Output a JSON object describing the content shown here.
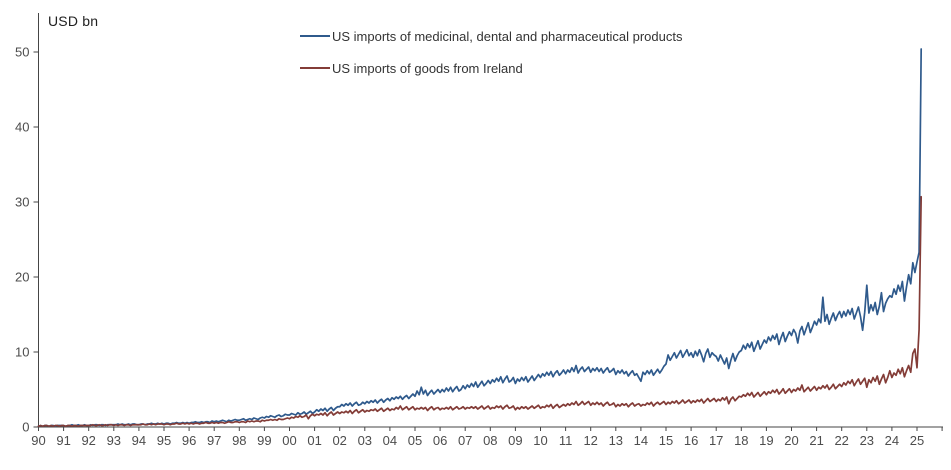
{
  "chart": {
    "axis_color": "#454545",
    "tick_text_color": "#4d4d4d",
    "background": "#ffffff"
  },
  "chart_data": {
    "type": "line",
    "title": "",
    "unit_label": "USD bn",
    "grid": false,
    "legend_position": "top-center",
    "x_axis": {
      "start": "1990-01",
      "frequency": "monthly",
      "tick_labels": [
        "90",
        "91",
        "92",
        "93",
        "94",
        "95",
        "96",
        "97",
        "98",
        "99",
        "00",
        "01",
        "02",
        "03",
        "04",
        "05",
        "06",
        "07",
        "08",
        "09",
        "10",
        "11",
        "12",
        "13",
        "14",
        "15",
        "16",
        "17",
        "18",
        "19",
        "20",
        "21",
        "22",
        "23",
        "24",
        "25"
      ]
    },
    "y_axis": {
      "ticks": [
        0,
        10,
        20,
        30,
        40,
        50
      ],
      "range": [
        0,
        52
      ]
    },
    "series": [
      {
        "name": "US imports of medicinal, dental and pharmaceutical products",
        "color": "#2F5A8C",
        "values": [
          0.1,
          0.2,
          0.1,
          0.2,
          0.2,
          0.1,
          0.2,
          0.2,
          0.1,
          0.2,
          0.2,
          0.2,
          0.2,
          0.1,
          0.2,
          0.2,
          0.3,
          0.2,
          0.2,
          0.3,
          0.2,
          0.2,
          0.3,
          0.2,
          0.2,
          0.3,
          0.2,
          0.3,
          0.3,
          0.2,
          0.3,
          0.3,
          0.2,
          0.3,
          0.3,
          0.3,
          0.3,
          0.3,
          0.4,
          0.3,
          0.4,
          0.3,
          0.3,
          0.4,
          0.3,
          0.4,
          0.4,
          0.3,
          0.3,
          0.4,
          0.4,
          0.3,
          0.4,
          0.4,
          0.5,
          0.4,
          0.4,
          0.5,
          0.4,
          0.5,
          0.4,
          0.5,
          0.5,
          0.4,
          0.5,
          0.5,
          0.6,
          0.5,
          0.5,
          0.6,
          0.5,
          0.6,
          0.5,
          0.6,
          0.6,
          0.7,
          0.6,
          0.6,
          0.7,
          0.6,
          0.7,
          0.7,
          0.6,
          0.8,
          0.7,
          0.8,
          0.7,
          0.8,
          0.9,
          0.8,
          0.7,
          0.9,
          0.8,
          0.9,
          1.0,
          0.9,
          0.9,
          1.0,
          1.1,
          0.9,
          1.0,
          1.1,
          1.0,
          1.2,
          1.1,
          1.0,
          1.2,
          1.3,
          1.2,
          1.4,
          1.3,
          1.5,
          1.4,
          1.3,
          1.5,
          1.6,
          1.4,
          1.5,
          1.7,
          1.6,
          1.6,
          1.8,
          1.7,
          1.6,
          1.9,
          1.7,
          1.8,
          2.0,
          1.7,
          1.9,
          2.1,
          1.8,
          2.0,
          2.3,
          2.1,
          2.4,
          2.2,
          2.5,
          2.1,
          2.4,
          2.6,
          2.2,
          2.5,
          2.7,
          2.7,
          3.0,
          2.8,
          3.1,
          2.9,
          3.2,
          2.8,
          3.1,
          3.3,
          2.9,
          3.0,
          3.3,
          3.1,
          3.4,
          3.2,
          3.5,
          3.3,
          3.6,
          3.2,
          3.5,
          3.7,
          3.3,
          3.6,
          3.8,
          3.5,
          3.9,
          3.7,
          4.0,
          3.8,
          4.1,
          3.7,
          4.0,
          4.2,
          3.8,
          4.1,
          4.4,
          4.1,
          4.8,
          4.3,
          5.3,
          4.4,
          4.9,
          4.2,
          4.6,
          4.9,
          4.4,
          4.7,
          5.0,
          4.6,
          5.0,
          4.7,
          5.2,
          4.8,
          5.3,
          4.7,
          5.1,
          5.4,
          4.8,
          5.0,
          5.5,
          5.1,
          5.6,
          5.3,
          5.8,
          5.4,
          6.0,
          5.3,
          5.7,
          6.1,
          5.5,
          5.8,
          6.2,
          5.8,
          6.3,
          6.0,
          6.5,
          6.1,
          6.7,
          5.9,
          6.4,
          6.8,
          6.0,
          6.2,
          6.6,
          5.8,
          6.4,
          6.1,
          6.6,
          6.2,
          6.7,
          6.0,
          6.4,
          6.8,
          6.2,
          6.6,
          7.0,
          6.6,
          7.1,
          6.8,
          7.3,
          6.9,
          7.4,
          6.7,
          7.2,
          7.5,
          6.9,
          7.2,
          7.6,
          7.1,
          7.6,
          7.3,
          7.9,
          7.4,
          8.2,
          7.2,
          7.7,
          8.0,
          7.4,
          7.7,
          8.0,
          7.3,
          7.8,
          7.5,
          7.9,
          7.4,
          7.8,
          7.2,
          7.6,
          7.9,
          7.3,
          7.5,
          7.8,
          7.0,
          7.5,
          7.2,
          7.6,
          7.1,
          7.4,
          6.8,
          7.2,
          7.5,
          6.9,
          7.1,
          6.6,
          6.1,
          7.3,
          7.0,
          7.5,
          7.1,
          7.6,
          6.9,
          7.3,
          7.7,
          7.2,
          7.6,
          8.1,
          8.4,
          9.6,
          8.9,
          9.4,
          9.9,
          9.2,
          9.7,
          10.2,
          9.3,
          9.8,
          10.3,
          9.5,
          9.9,
          9.3,
          10.1,
          9.5,
          10.3,
          9.6,
          8.7,
          9.8,
          10.4,
          9.3,
          9.9,
          9.6,
          9.4,
          8.8,
          9.6,
          9.0,
          8.4,
          9.2,
          7.8,
          8.9,
          9.8,
          8.8,
          9.5,
          10.0,
          10.2,
          10.9,
          10.4,
          11.1,
          10.6,
          11.3,
          10.1,
          10.8,
          11.5,
          10.4,
          11.0,
          11.6,
          11.2,
          12.0,
          11.5,
          12.2,
          11.7,
          12.4,
          11.0,
          11.9,
          12.6,
          11.4,
          12.1,
          12.7,
          12.2,
          13.0,
          12.5,
          11.2,
          12.8,
          13.4,
          12.3,
          13.1,
          13.9,
          12.6,
          13.3,
          14.1,
          13.6,
          14.4,
          13.9,
          17.3,
          14.1,
          15.0,
          13.7,
          14.5,
          15.2,
          14.2,
          14.9,
          15.4,
          14.6,
          15.4,
          14.8,
          15.6,
          15.0,
          15.8,
          14.4,
          15.2,
          16.0,
          14.7,
          12.9,
          15.3,
          18.9,
          15.2,
          16.3,
          15.5,
          16.6,
          15.0,
          16.1,
          17.9,
          15.4,
          16.5,
          17.1,
          17.5,
          17.3,
          18.4,
          17.7,
          18.9,
          18.1,
          19.4,
          16.8,
          18.7,
          20.3,
          19.1,
          21.9,
          20.6,
          22.0,
          23.3,
          50.4
        ]
      },
      {
        "name": "US imports of goods from Ireland",
        "color": "#833C37",
        "values": [
          0.1,
          0.2,
          0.1,
          0.2,
          0.2,
          0.1,
          0.2,
          0.1,
          0.2,
          0.2,
          0.1,
          0.2,
          0.2,
          0.1,
          0.2,
          0.2,
          0.1,
          0.2,
          0.2,
          0.1,
          0.2,
          0.2,
          0.2,
          0.2,
          0.2,
          0.2,
          0.3,
          0.2,
          0.2,
          0.3,
          0.2,
          0.2,
          0.3,
          0.2,
          0.3,
          0.3,
          0.2,
          0.3,
          0.2,
          0.3,
          0.3,
          0.2,
          0.3,
          0.3,
          0.2,
          0.3,
          0.3,
          0.3,
          0.3,
          0.3,
          0.4,
          0.3,
          0.3,
          0.4,
          0.3,
          0.4,
          0.3,
          0.4,
          0.4,
          0.4,
          0.3,
          0.4,
          0.4,
          0.3,
          0.4,
          0.4,
          0.5,
          0.4,
          0.4,
          0.5,
          0.4,
          0.5,
          0.4,
          0.5,
          0.4,
          0.5,
          0.5,
          0.4,
          0.5,
          0.5,
          0.6,
          0.5,
          0.5,
          0.6,
          0.5,
          0.6,
          0.5,
          0.6,
          0.6,
          0.5,
          0.6,
          0.7,
          0.6,
          0.6,
          0.7,
          0.7,
          0.6,
          0.7,
          0.7,
          0.6,
          0.8,
          0.7,
          0.8,
          0.7,
          0.8,
          0.8,
          0.7,
          0.9,
          0.8,
          0.9,
          0.9,
          1.0,
          0.9,
          1.0,
          0.9,
          1.1,
          1.0,
          1.0,
          1.1,
          1.2,
          1.1,
          1.3,
          1.2,
          1.4,
          1.3,
          1.5,
          1.3,
          1.4,
          1.6,
          1.1,
          1.5,
          1.7,
          1.5,
          1.7,
          1.6,
          1.8,
          1.6,
          1.9,
          1.5,
          1.8,
          2.0,
          1.6,
          1.8,
          2.0,
          1.8,
          2.0,
          1.9,
          2.1,
          1.9,
          2.2,
          1.8,
          2.1,
          2.3,
          1.9,
          2.1,
          2.3,
          2.0,
          2.2,
          2.1,
          2.3,
          2.2,
          2.4,
          2.1,
          2.3,
          2.5,
          2.1,
          2.3,
          2.5,
          2.2,
          2.4,
          2.3,
          2.6,
          2.4,
          2.8,
          2.3,
          2.5,
          2.7,
          2.3,
          2.5,
          2.7,
          2.3,
          2.5,
          2.4,
          2.6,
          2.4,
          2.6,
          2.2,
          2.5,
          2.7,
          2.3,
          2.5,
          2.6,
          2.3,
          2.5,
          2.4,
          2.6,
          2.4,
          2.7,
          2.3,
          2.5,
          2.7,
          2.4,
          2.5,
          2.7,
          2.4,
          2.6,
          2.5,
          2.7,
          2.5,
          2.7,
          2.4,
          2.6,
          2.8,
          2.4,
          2.6,
          2.8,
          2.4,
          2.6,
          2.5,
          2.8,
          2.6,
          2.8,
          2.4,
          2.7,
          2.9,
          2.5,
          2.6,
          2.8,
          2.3,
          2.6,
          2.4,
          2.7,
          2.5,
          2.7,
          2.4,
          2.6,
          2.8,
          2.5,
          2.7,
          2.9,
          2.5,
          2.7,
          2.6,
          2.9,
          2.7,
          3.0,
          2.5,
          2.8,
          3.0,
          2.6,
          2.8,
          3.0,
          2.8,
          3.1,
          2.9,
          3.2,
          3.0,
          3.4,
          2.9,
          3.1,
          3.4,
          3.0,
          3.2,
          3.4,
          2.9,
          3.2,
          3.0,
          3.3,
          3.0,
          3.2,
          2.8,
          3.1,
          3.3,
          2.9,
          3.0,
          3.2,
          2.7,
          3.0,
          2.8,
          3.1,
          2.9,
          3.1,
          2.7,
          3.0,
          3.2,
          2.8,
          3.0,
          3.1,
          2.8,
          3.0,
          2.9,
          3.2,
          3.0,
          3.3,
          2.8,
          3.1,
          3.3,
          3.0,
          3.2,
          3.4,
          3.0,
          3.3,
          3.1,
          3.4,
          3.2,
          3.5,
          3.1,
          3.3,
          3.6,
          3.2,
          3.4,
          3.6,
          3.2,
          3.5,
          3.3,
          3.6,
          3.4,
          3.7,
          3.2,
          3.5,
          3.8,
          3.4,
          3.6,
          3.8,
          3.4,
          3.7,
          3.5,
          3.9,
          3.6,
          4.0,
          3.1,
          3.7,
          4.0,
          3.5,
          3.8,
          4.1,
          4.0,
          4.3,
          4.1,
          4.5,
          4.2,
          4.6,
          4.0,
          4.3,
          4.6,
          4.1,
          4.4,
          4.7,
          4.3,
          4.7,
          4.5,
          4.9,
          4.6,
          5.0,
          4.4,
          4.7,
          5.1,
          4.5,
          4.8,
          5.1,
          4.6,
          5.0,
          4.8,
          5.2,
          4.9,
          5.6,
          4.7,
          5.0,
          5.3,
          4.8,
          5.1,
          5.4,
          4.9,
          5.3,
          5.1,
          5.5,
          5.2,
          5.6,
          5.0,
          5.3,
          5.7,
          5.1,
          5.4,
          5.7,
          5.4,
          5.9,
          5.6,
          6.1,
          5.8,
          6.3,
          5.5,
          6.0,
          6.4,
          5.7,
          6.1,
          6.5,
          5.3,
          6.3,
          5.9,
          6.6,
          6.1,
          6.8,
          5.7,
          6.4,
          7.0,
          5.9,
          6.6,
          7.5,
          6.6,
          7.2,
          6.9,
          7.7,
          7.1,
          7.9,
          6.7,
          7.5,
          8.2,
          7.3,
          9.8,
          10.4,
          7.9,
          13.0,
          30.7
        ]
      }
    ]
  }
}
